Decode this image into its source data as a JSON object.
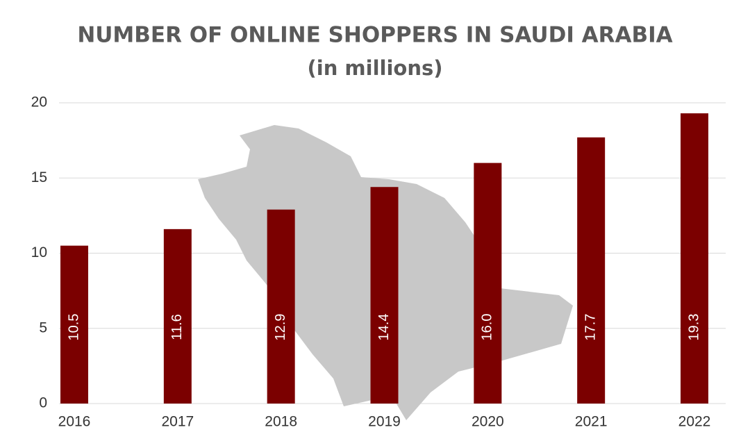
{
  "chart_data": {
    "type": "bar",
    "title": "NUMBER OF ONLINE SHOPPERS IN SAUDI ARABIA",
    "subtitle": "(in millions)",
    "categories": [
      "2016",
      "2017",
      "2018",
      "2019",
      "2020",
      "2021",
      "2022"
    ],
    "values": [
      10.5,
      11.6,
      12.9,
      14.4,
      16.0,
      17.7,
      19.3
    ],
    "value_labels": [
      "10.5",
      "11.6",
      "12.9",
      "14.4",
      "16.0",
      "17.7",
      "19.3"
    ],
    "color": "#7b0000",
    "ylim": [
      0,
      20
    ],
    "yticks": [
      0,
      5,
      10,
      15,
      20
    ],
    "grid": true
  }
}
